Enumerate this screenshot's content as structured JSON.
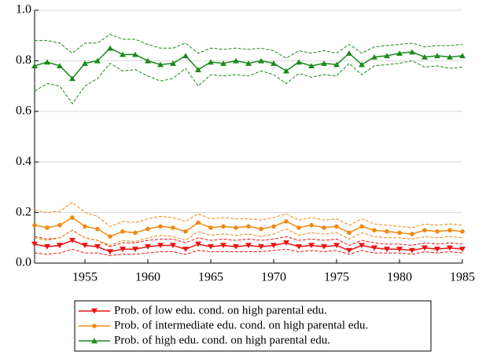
{
  "chart_data": {
    "type": "line",
    "x": [
      1951,
      1952,
      1953,
      1954,
      1955,
      1956,
      1957,
      1958,
      1959,
      1960,
      1961,
      1962,
      1963,
      1964,
      1965,
      1966,
      1967,
      1968,
      1969,
      1970,
      1971,
      1972,
      1973,
      1974,
      1975,
      1976,
      1977,
      1978,
      1979,
      1980,
      1981,
      1982,
      1983,
      1984,
      1985
    ],
    "xlim": [
      1951,
      1985
    ],
    "xticks": [
      1955,
      1960,
      1965,
      1970,
      1975,
      1980,
      1985
    ],
    "ylim": [
      0,
      1
    ],
    "yticks": [
      {
        "value": 0,
        "label": "0.0"
      },
      0.2,
      0.4,
      0.6,
      0.8,
      {
        "value": 1,
        "label": "1.0"
      }
    ],
    "grid": true,
    "legend": "bottom",
    "series": [
      {
        "name": "Prob. of low edu. cond. on high parental edu.",
        "color": "#ee1111",
        "marker": "triangle-down",
        "values": [
          0.075,
          0.065,
          0.07,
          0.09,
          0.07,
          0.065,
          0.045,
          0.055,
          0.055,
          0.065,
          0.07,
          0.07,
          0.055,
          0.075,
          0.065,
          0.07,
          0.065,
          0.07,
          0.065,
          0.07,
          0.08,
          0.065,
          0.07,
          0.065,
          0.07,
          0.05,
          0.07,
          0.06,
          0.055,
          0.055,
          0.05,
          0.06,
          0.055,
          0.06,
          0.055
        ],
        "upper": [
          0.105,
          0.095,
          0.1,
          0.13,
          0.1,
          0.09,
          0.065,
          0.08,
          0.08,
          0.09,
          0.095,
          0.095,
          0.08,
          0.1,
          0.09,
          0.095,
          0.09,
          0.095,
          0.09,
          0.095,
          0.105,
          0.09,
          0.095,
          0.09,
          0.095,
          0.07,
          0.09,
          0.08,
          0.075,
          0.075,
          0.07,
          0.08,
          0.075,
          0.08,
          0.075
        ],
        "lower": [
          0.04,
          0.035,
          0.04,
          0.055,
          0.04,
          0.04,
          0.03,
          0.035,
          0.035,
          0.04,
          0.045,
          0.045,
          0.035,
          0.05,
          0.045,
          0.045,
          0.045,
          0.045,
          0.045,
          0.05,
          0.055,
          0.045,
          0.05,
          0.045,
          0.05,
          0.035,
          0.05,
          0.04,
          0.04,
          0.04,
          0.035,
          0.045,
          0.04,
          0.045,
          0.04
        ]
      },
      {
        "name": "Prob. of intermediate edu. cond. on high parental edu.",
        "color": "#f08a10",
        "marker": "circle",
        "values": [
          0.15,
          0.14,
          0.15,
          0.18,
          0.145,
          0.135,
          0.105,
          0.125,
          0.12,
          0.135,
          0.145,
          0.14,
          0.125,
          0.16,
          0.14,
          0.145,
          0.14,
          0.145,
          0.135,
          0.145,
          0.165,
          0.14,
          0.15,
          0.14,
          0.145,
          0.12,
          0.145,
          0.13,
          0.125,
          0.12,
          0.115,
          0.13,
          0.125,
          0.13,
          0.125
        ],
        "upper": [
          0.21,
          0.2,
          0.205,
          0.24,
          0.2,
          0.185,
          0.145,
          0.165,
          0.16,
          0.175,
          0.185,
          0.18,
          0.165,
          0.195,
          0.175,
          0.18,
          0.175,
          0.175,
          0.17,
          0.18,
          0.195,
          0.17,
          0.18,
          0.17,
          0.175,
          0.15,
          0.175,
          0.155,
          0.15,
          0.145,
          0.14,
          0.155,
          0.15,
          0.155,
          0.15
        ],
        "lower": [
          0.1,
          0.09,
          0.1,
          0.13,
          0.1,
          0.09,
          0.07,
          0.09,
          0.085,
          0.1,
          0.11,
          0.105,
          0.09,
          0.125,
          0.11,
          0.115,
          0.11,
          0.115,
          0.105,
          0.115,
          0.135,
          0.11,
          0.12,
          0.115,
          0.12,
          0.095,
          0.12,
          0.105,
          0.1,
          0.1,
          0.095,
          0.105,
          0.1,
          0.105,
          0.1
        ]
      },
      {
        "name": "Prob. of high edu. cond. on high parental edu.",
        "color": "#1a8a1a",
        "marker": "triangle-up",
        "values": [
          0.78,
          0.795,
          0.78,
          0.73,
          0.79,
          0.8,
          0.85,
          0.825,
          0.825,
          0.8,
          0.785,
          0.79,
          0.82,
          0.765,
          0.795,
          0.79,
          0.8,
          0.79,
          0.8,
          0.79,
          0.76,
          0.795,
          0.78,
          0.79,
          0.785,
          0.83,
          0.785,
          0.815,
          0.82,
          0.83,
          0.835,
          0.815,
          0.82,
          0.815,
          0.82
        ],
        "upper": [
          0.88,
          0.88,
          0.87,
          0.83,
          0.87,
          0.87,
          0.905,
          0.885,
          0.885,
          0.865,
          0.85,
          0.85,
          0.87,
          0.83,
          0.85,
          0.845,
          0.85,
          0.845,
          0.85,
          0.84,
          0.81,
          0.84,
          0.83,
          0.84,
          0.83,
          0.865,
          0.83,
          0.855,
          0.86,
          0.865,
          0.87,
          0.855,
          0.86,
          0.86,
          0.865
        ],
        "lower": [
          0.68,
          0.71,
          0.7,
          0.63,
          0.7,
          0.73,
          0.79,
          0.76,
          0.765,
          0.74,
          0.72,
          0.73,
          0.77,
          0.7,
          0.745,
          0.74,
          0.745,
          0.74,
          0.76,
          0.745,
          0.71,
          0.75,
          0.735,
          0.745,
          0.74,
          0.79,
          0.745,
          0.78,
          0.785,
          0.79,
          0.8,
          0.775,
          0.78,
          0.77,
          0.775
        ]
      }
    ]
  }
}
